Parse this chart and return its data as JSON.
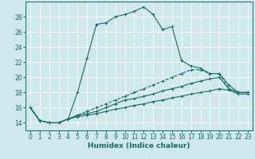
{
  "xlabel": "Humidex (Indice chaleur)",
  "ylabel": "",
  "background_color": "#cfe8ec",
  "grid_color": "#ffffff",
  "line_color": "#1a6b5e",
  "xlim": [
    -0.5,
    23.5
  ],
  "ylim": [
    13.0,
    30.0
  ],
  "xticks": [
    0,
    1,
    2,
    3,
    4,
    5,
    6,
    7,
    8,
    9,
    10,
    11,
    12,
    13,
    14,
    15,
    16,
    17,
    18,
    19,
    20,
    21,
    22,
    23
  ],
  "yticks": [
    14,
    16,
    18,
    20,
    22,
    24,
    26,
    28
  ],
  "series": [
    [
      16.0,
      14.3,
      14.0,
      14.0,
      14.5,
      18.0,
      22.5,
      27.0,
      27.2,
      28.0,
      28.3,
      28.7,
      29.3,
      28.3,
      26.3,
      26.7,
      22.2,
      21.5,
      21.2,
      20.5,
      20.5,
      19.0,
      18.0,
      18.0
    ],
    [
      16.0,
      14.3,
      14.0,
      14.0,
      14.5,
      15.0,
      15.5,
      16.0,
      16.5,
      17.0,
      17.5,
      18.0,
      18.5,
      19.0,
      19.5,
      20.0,
      20.5,
      21.0,
      21.0,
      20.5,
      20.5,
      18.5,
      18.0,
      18.0
    ],
    [
      16.0,
      14.3,
      14.0,
      14.0,
      14.5,
      15.0,
      15.2,
      15.5,
      16.0,
      16.5,
      17.0,
      17.2,
      17.5,
      17.8,
      18.2,
      18.5,
      18.8,
      19.2,
      19.5,
      19.8,
      20.0,
      18.5,
      18.0,
      18.0
    ],
    [
      16.0,
      14.3,
      14.0,
      14.0,
      14.5,
      14.8,
      15.0,
      15.2,
      15.5,
      15.8,
      16.0,
      16.3,
      16.5,
      16.8,
      17.0,
      17.3,
      17.5,
      17.8,
      18.0,
      18.2,
      18.5,
      18.3,
      17.8,
      17.8
    ]
  ],
  "linestyles": [
    "-",
    "--",
    "-",
    "-"
  ],
  "marker": "+",
  "markersize": 3,
  "linewidth": 0.8,
  "label_fontsize": 6.5,
  "tick_fontsize": 5.5
}
